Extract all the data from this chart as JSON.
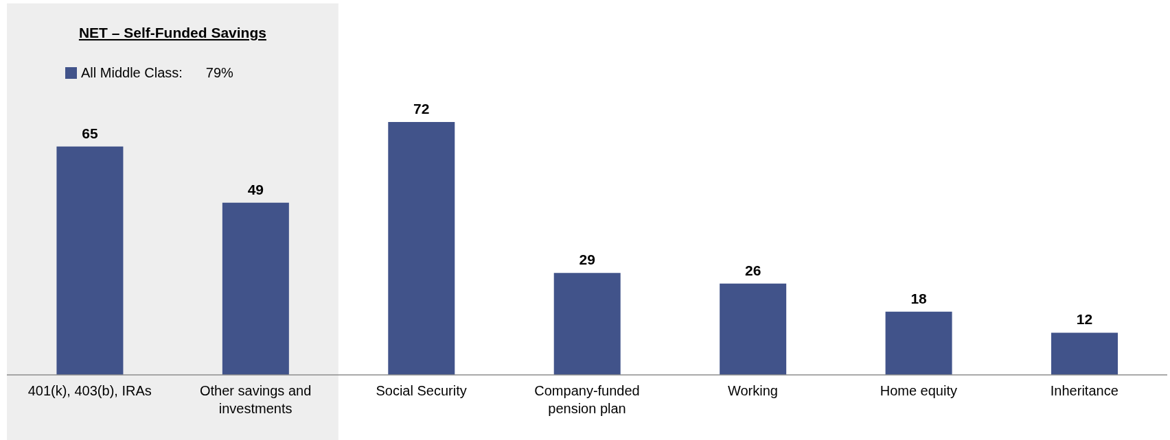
{
  "chart_data": {
    "type": "bar",
    "categories": [
      "401(k), 403(b), IRAs",
      "Other savings and investments",
      "Social Security",
      "Company-funded pension plan",
      "Working",
      "Home equity",
      "Inheritance"
    ],
    "series": [
      {
        "name": "All Middle Class:",
        "color": "#41538a",
        "values": [
          65,
          49,
          72,
          29,
          26,
          18,
          12
        ]
      }
    ],
    "data_labels": true,
    "legend": "top left",
    "grid": false,
    "tick_labels": "x",
    "bands": [
      {
        "axis": "x",
        "from": "401(k), 403(b), IRAs",
        "to": "Other savings and investments",
        "label": "NET – Self-Funded Savings",
        "color": "#eeeeee"
      }
    ],
    "annotations": [
      "79%"
    ]
  }
}
